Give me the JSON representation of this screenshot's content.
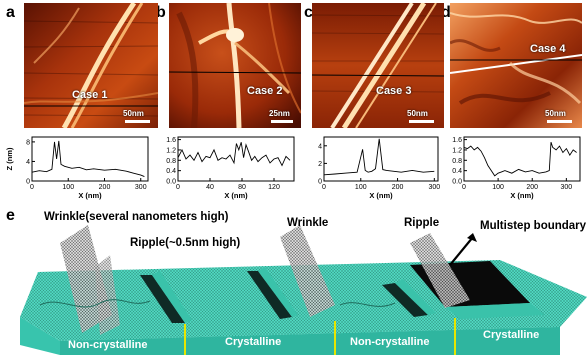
{
  "panels": [
    {
      "letter": "a",
      "case": "Case 1",
      "scale": "50nm"
    },
    {
      "letter": "b",
      "case": "Case 2",
      "scale": "25nm"
    },
    {
      "letter": "c",
      "case": "Case 3",
      "scale": "50nm"
    },
    {
      "letter": "d",
      "case": "Case 4",
      "scale": "50nm"
    }
  ],
  "schematic": {
    "letter": "e",
    "wrinkle_left": "Wrinkle(several nanometers high)",
    "ripple_left": "Ripple(~0.5nm high)",
    "wrinkle_mid": "Wrinkle",
    "ripple_right": "Ripple",
    "boundary": "Multistep boundary",
    "regions": [
      "Non-crystalline",
      "Crystalline",
      "Non-crystalline",
      "Crystalline"
    ]
  },
  "chart_data": [
    {
      "type": "line",
      "panel": "a",
      "xlabel": "X (nm)",
      "ylabel": "Z (nm)",
      "xlim": [
        0,
        320
      ],
      "ylim": [
        0,
        9
      ],
      "xticks": [
        0,
        100,
        200,
        300
      ],
      "yticks": [
        0,
        4,
        8
      ],
      "x": [
        0,
        20,
        40,
        55,
        62,
        68,
        74,
        80,
        90,
        110,
        130,
        150,
        170,
        200,
        230,
        260,
        280,
        300,
        310
      ],
      "y": [
        1.8,
        2.1,
        1.9,
        2.4,
        8.0,
        4.5,
        8.2,
        3.4,
        3.0,
        2.6,
        2.8,
        2.3,
        2.5,
        2.2,
        2.4,
        2.0,
        1.6,
        1.2,
        0.9
      ]
    },
    {
      "type": "line",
      "panel": "b",
      "xlabel": "X (nm)",
      "xlim": [
        0,
        145
      ],
      "ylim": [
        0,
        1.7
      ],
      "xticks": [
        0,
        40,
        80,
        120
      ],
      "yticks": [
        0.0,
        0.4,
        0.8,
        1.2,
        1.6
      ],
      "x": [
        0,
        5,
        10,
        15,
        20,
        25,
        30,
        35,
        40,
        45,
        50,
        55,
        60,
        65,
        70,
        73,
        76,
        79,
        82,
        85,
        88,
        92,
        96,
        100,
        105,
        110,
        115,
        120,
        125,
        130,
        135,
        140
      ],
      "y": [
        0.9,
        1.2,
        0.85,
        1.0,
        0.8,
        1.1,
        0.75,
        0.95,
        0.9,
        1.2,
        0.8,
        0.9,
        0.85,
        1.0,
        0.7,
        1.45,
        1.2,
        1.5,
        0.9,
        1.4,
        1.15,
        0.8,
        0.95,
        0.75,
        0.9,
        1.0,
        0.7,
        0.85,
        0.9,
        0.6,
        0.95,
        0.8
      ]
    },
    {
      "type": "line",
      "panel": "c",
      "xlim": [
        0,
        310
      ],
      "ylim": [
        0,
        5
      ],
      "xticks": [
        0,
        100,
        200,
        300
      ],
      "yticks": [
        0,
        2,
        4
      ],
      "xlabel": "X (nm)",
      "x": [
        0,
        30,
        60,
        90,
        105,
        112,
        120,
        130,
        140,
        150,
        160,
        170,
        190,
        210,
        240,
        270,
        300
      ],
      "y": [
        0.7,
        0.8,
        0.9,
        1.0,
        3.6,
        1.2,
        1.0,
        1.1,
        1.4,
        4.8,
        1.3,
        1.2,
        1.1,
        1.0,
        1.2,
        1.0,
        1.1
      ]
    },
    {
      "type": "line",
      "panel": "d",
      "xlim": [
        0,
        340
      ],
      "ylim": [
        0,
        1.7
      ],
      "xticks": [
        0,
        100,
        200,
        300
      ],
      "yticks": [
        0.0,
        0.4,
        0.8,
        1.2,
        1.6
      ],
      "xlabel": "X (nm)",
      "x": [
        0,
        10,
        20,
        30,
        40,
        50,
        60,
        70,
        80,
        90,
        100,
        110,
        120,
        140,
        160,
        180,
        200,
        220,
        240,
        250,
        255,
        260,
        270,
        280,
        290,
        300,
        310,
        320,
        330
      ],
      "y": [
        1.3,
        1.25,
        1.35,
        1.2,
        1.3,
        1.15,
        0.9,
        0.6,
        0.4,
        0.2,
        0.3,
        0.35,
        0.4,
        0.3,
        0.45,
        0.35,
        0.4,
        0.3,
        0.35,
        0.4,
        1.5,
        1.3,
        1.2,
        1.35,
        1.1,
        1.25,
        1.0,
        1.2,
        1.1
      ]
    }
  ]
}
